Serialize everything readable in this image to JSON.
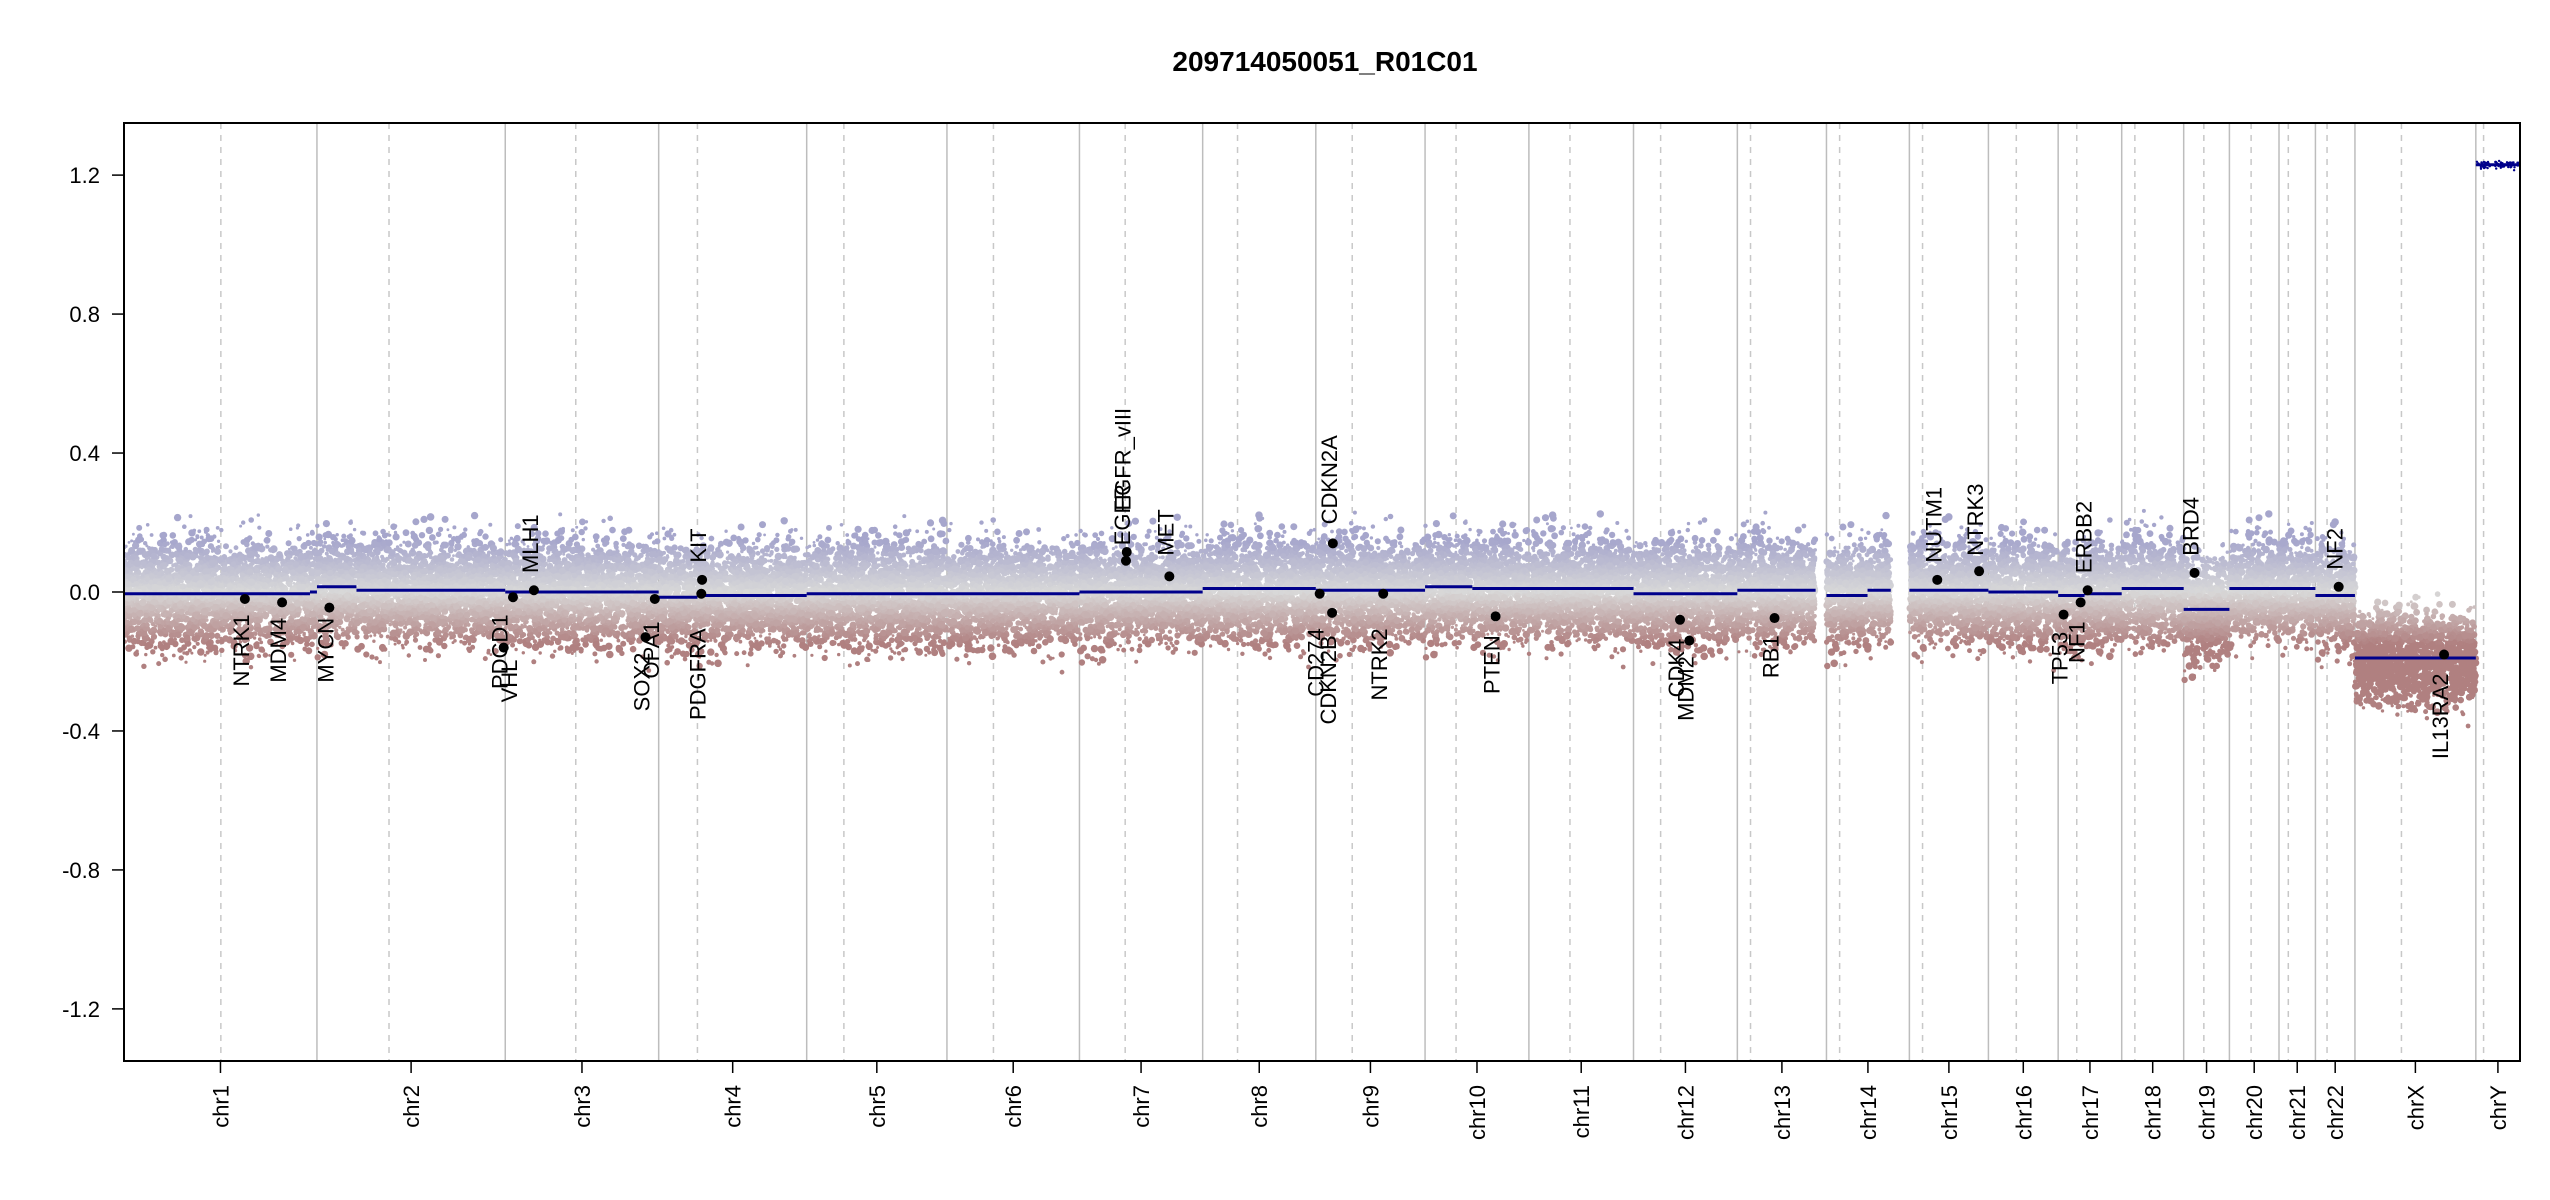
{
  "chart_data": {
    "type": "scatter",
    "title": "209714050051_R01C01",
    "xlabel": "",
    "ylabel": "",
    "ylim": [
      -1.35,
      1.35
    ],
    "yticks": [
      -1.2,
      -0.8,
      -0.4,
      0.0,
      0.4,
      0.8,
      1.2
    ],
    "ytick_labels": [
      "-1.2",
      "-0.8",
      "-0.4",
      "0.0",
      "0.4",
      "0.8",
      "1.2"
    ],
    "grid": false,
    "legend": "none",
    "colors": {
      "gain": "#a6a6cc",
      "loss": "#b08080",
      "neutral": "#d8d8d8",
      "segment": "#00008b",
      "chrom_border": "#bdbdbd",
      "centromere": "#c8c8c8",
      "gene_point": "#000000"
    },
    "chromosomes": [
      {
        "name": "chr1",
        "start": 0,
        "end": 249,
        "centromere": 125
      },
      {
        "name": "chr2",
        "start": 249,
        "end": 492,
        "centromere": 342
      },
      {
        "name": "chr3",
        "start": 492,
        "end": 690,
        "centromere": 583
      },
      {
        "name": "chr4",
        "start": 690,
        "end": 881,
        "centromere": 740
      },
      {
        "name": "chr5",
        "start": 881,
        "end": 1062,
        "centromere": 929
      },
      {
        "name": "chr6",
        "start": 1062,
        "end": 1233,
        "centromere": 1122
      },
      {
        "name": "chr7",
        "start": 1233,
        "end": 1392,
        "centromere": 1292
      },
      {
        "name": "chr8",
        "start": 1392,
        "end": 1538,
        "centromere": 1437
      },
      {
        "name": "chr9",
        "start": 1538,
        "end": 1679,
        "centromere": 1585
      },
      {
        "name": "chr10",
        "start": 1679,
        "end": 1813,
        "centromere": 1719
      },
      {
        "name": "chr11",
        "start": 1813,
        "end": 1948,
        "centromere": 1866
      },
      {
        "name": "chr12",
        "start": 1948,
        "end": 2082,
        "centromere": 1983
      },
      {
        "name": "chr13",
        "start": 2082,
        "end": 2197,
        "centromere": 2099
      },
      {
        "name": "chr14",
        "start": 2197,
        "end": 2304,
        "centromere": 2214
      },
      {
        "name": "chr15",
        "start": 2304,
        "end": 2406,
        "centromere": 2321
      },
      {
        "name": "chr16",
        "start": 2406,
        "end": 2496,
        "centromere": 2442
      },
      {
        "name": "chr17",
        "start": 2496,
        "end": 2578,
        "centromere": 2520
      },
      {
        "name": "chr18",
        "start": 2578,
        "end": 2658,
        "centromere": 2595
      },
      {
        "name": "chr19",
        "start": 2658,
        "end": 2717,
        "centromere": 2684
      },
      {
        "name": "chr20",
        "start": 2717,
        "end": 2781,
        "centromere": 2745
      },
      {
        "name": "chr21",
        "start": 2781,
        "end": 2828,
        "centromere": 2793
      },
      {
        "name": "chr22",
        "start": 2828,
        "end": 2879,
        "centromere": 2843
      },
      {
        "name": "chrX",
        "start": 2879,
        "end": 3035,
        "centromere": 2939
      },
      {
        "name": "chrY",
        "start": 3035,
        "end": 3092,
        "centromere": 3045
      }
    ],
    "segments": [
      {
        "start": 0,
        "end": 240,
        "value": -0.005
      },
      {
        "start": 240,
        "end": 249,
        "value": 0.0
      },
      {
        "start": 249,
        "end": 300,
        "value": 0.015
      },
      {
        "start": 300,
        "end": 492,
        "value": 0.005
      },
      {
        "start": 492,
        "end": 690,
        "value": 0.0
      },
      {
        "start": 690,
        "end": 740,
        "value": -0.015
      },
      {
        "start": 740,
        "end": 881,
        "value": -0.01
      },
      {
        "start": 881,
        "end": 1233,
        "value": -0.005
      },
      {
        "start": 1233,
        "end": 1392,
        "value": 0.0
      },
      {
        "start": 1392,
        "end": 1538,
        "value": 0.01
      },
      {
        "start": 1538,
        "end": 1679,
        "value": 0.005
      },
      {
        "start": 1679,
        "end": 1740,
        "value": 0.015
      },
      {
        "start": 1740,
        "end": 1948,
        "value": 0.01
      },
      {
        "start": 1948,
        "end": 2082,
        "value": -0.005
      },
      {
        "start": 2082,
        "end": 2183,
        "value": 0.005
      },
      {
        "start": 2197,
        "end": 2250,
        "value": -0.01
      },
      {
        "start": 2250,
        "end": 2280,
        "value": 0.005
      },
      {
        "start": 2304,
        "end": 2406,
        "value": 0.005
      },
      {
        "start": 2406,
        "end": 2496,
        "value": 0.0
      },
      {
        "start": 2496,
        "end": 2530,
        "value": -0.01
      },
      {
        "start": 2530,
        "end": 2578,
        "value": -0.005
      },
      {
        "start": 2578,
        "end": 2658,
        "value": 0.01
      },
      {
        "start": 2658,
        "end": 2717,
        "value": -0.05
      },
      {
        "start": 2717,
        "end": 2781,
        "value": 0.01
      },
      {
        "start": 2781,
        "end": 2828,
        "value": 0.01
      },
      {
        "start": 2828,
        "end": 2879,
        "value": -0.01
      },
      {
        "start": 2879,
        "end": 3035,
        "value": -0.19
      },
      {
        "start": 3035,
        "end": 3092,
        "value": 1.23
      }
    ],
    "genes": [
      {
        "name": "NTRK1",
        "x": 156,
        "y": -0.02,
        "label_y": -0.03,
        "anchor": "end"
      },
      {
        "name": "MDM4",
        "x": 204,
        "y": -0.03,
        "label_y": -0.04,
        "anchor": "end"
      },
      {
        "name": "MYCN",
        "x": 265,
        "y": -0.045,
        "label_y": -0.04,
        "anchor": "end"
      },
      {
        "name": "VHL",
        "x": 502,
        "y": -0.015,
        "label_y": -0.16,
        "anchor": "end"
      },
      {
        "name": "PDCD1",
        "x": 490,
        "y": -0.16,
        "label_y": -0.03,
        "anchor": "end"
      },
      {
        "name": "MLH1",
        "x": 529,
        "y": 0.005,
        "label_y": 0.02,
        "anchor": "start"
      },
      {
        "name": "SOX2",
        "x": 673,
        "y": -0.13,
        "label_y": -0.14,
        "anchor": "end"
      },
      {
        "name": "OPA1",
        "x": 685,
        "y": -0.02,
        "label_y": -0.05,
        "anchor": "end"
      },
      {
        "name": "PDGFRA",
        "x": 745,
        "y": -0.005,
        "label_y": -0.07,
        "anchor": "end"
      },
      {
        "name": "KIT",
        "x": 746,
        "y": 0.035,
        "label_y": 0.05,
        "anchor": "start"
      },
      {
        "name": "EGFR",
        "x": 1293,
        "y": 0.09,
        "label_y": 0.1,
        "anchor": "start"
      },
      {
        "name": "EGFR_vIII",
        "x": 1294,
        "y": 0.115,
        "label_y": 0.2,
        "anchor": "start"
      },
      {
        "name": "MET",
        "x": 1349,
        "y": 0.045,
        "label_y": 0.07,
        "anchor": "start"
      },
      {
        "name": "CD274",
        "x": 1543,
        "y": -0.005,
        "label_y": -0.07,
        "anchor": "end"
      },
      {
        "name": "CDKN2B",
        "x": 1559,
        "y": -0.06,
        "label_y": -0.09,
        "anchor": "end"
      },
      {
        "name": "CDKN2A",
        "x": 1560,
        "y": 0.14,
        "label_y": 0.16,
        "anchor": "start"
      },
      {
        "name": "NTRK2",
        "x": 1625,
        "y": -0.005,
        "label_y": -0.07,
        "anchor": "end"
      },
      {
        "name": "PTEN",
        "x": 1770,
        "y": -0.07,
        "label_y": -0.09,
        "anchor": "end"
      },
      {
        "name": "CDK4",
        "x": 2008,
        "y": -0.08,
        "label_y": -0.1,
        "anchor": "end"
      },
      {
        "name": "MDM2",
        "x": 2020,
        "y": -0.14,
        "label_y": -0.15,
        "anchor": "end"
      },
      {
        "name": "RB1",
        "x": 2130,
        "y": -0.075,
        "label_y": -0.09,
        "anchor": "end"
      },
      {
        "name": "NUTM1",
        "x": 2340,
        "y": 0.035,
        "label_y": 0.05,
        "anchor": "start"
      },
      {
        "name": "NTRK3",
        "x": 2394,
        "y": 0.06,
        "label_y": 0.07,
        "anchor": "start"
      },
      {
        "name": "TP53",
        "x": 2503,
        "y": -0.065,
        "label_y": -0.08,
        "anchor": "end"
      },
      {
        "name": "NF1",
        "x": 2525,
        "y": -0.03,
        "label_y": -0.05,
        "anchor": "end"
      },
      {
        "name": "ERBB2",
        "x": 2534,
        "y": 0.005,
        "label_y": 0.02,
        "anchor": "start"
      },
      {
        "name": "BRD4",
        "x": 2672,
        "y": 0.055,
        "label_y": 0.07,
        "anchor": "start"
      },
      {
        "name": "NF2",
        "x": 2858,
        "y": 0.015,
        "label_y": 0.03,
        "anchor": "start"
      },
      {
        "name": "IL13RA2",
        "x": 2994,
        "y": -0.18,
        "label_y": -0.2,
        "anchor": "end"
      }
    ]
  }
}
